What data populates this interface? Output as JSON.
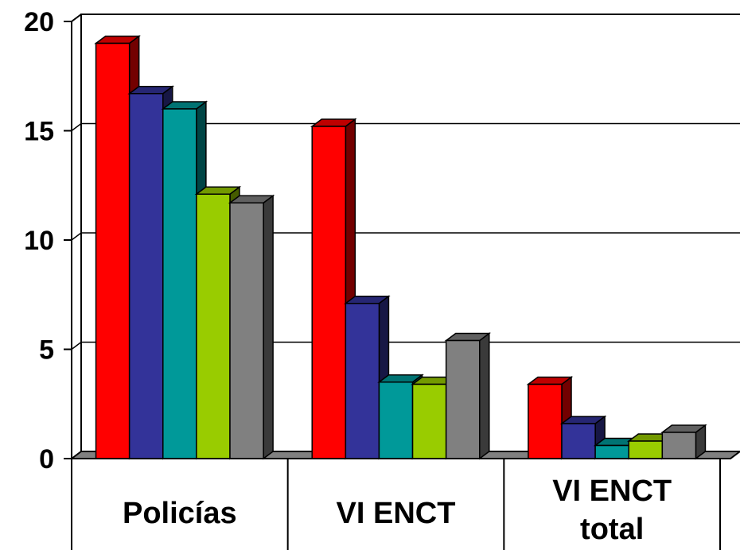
{
  "chart_data": {
    "type": "bar",
    "style": "3d-clustered-column",
    "categories": [
      "Policías",
      "VI ENCT",
      "VI ENCT total"
    ],
    "series": [
      {
        "values": [
          19.0,
          15.2,
          3.4
        ],
        "color": "#ff0000"
      },
      {
        "values": [
          16.7,
          7.1,
          1.6
        ],
        "color": "#333399"
      },
      {
        "values": [
          16.0,
          3.5,
          0.6
        ],
        "color": "#009999"
      },
      {
        "values": [
          12.1,
          3.4,
          0.8
        ],
        "color": "#99cc00"
      },
      {
        "values": [
          11.7,
          5.4,
          1.2
        ],
        "color": "#808080"
      }
    ],
    "ylim": [
      0,
      20
    ],
    "yticks": [
      0,
      5,
      10,
      15,
      20
    ],
    "ytick_labels": [
      "0",
      "5",
      "10",
      "15",
      "20"
    ],
    "category_labels": [
      [
        "Policías"
      ],
      [
        "VI ENCT"
      ],
      [
        "VI ENCT",
        "total"
      ]
    ],
    "grid": true,
    "legend": "none"
  }
}
